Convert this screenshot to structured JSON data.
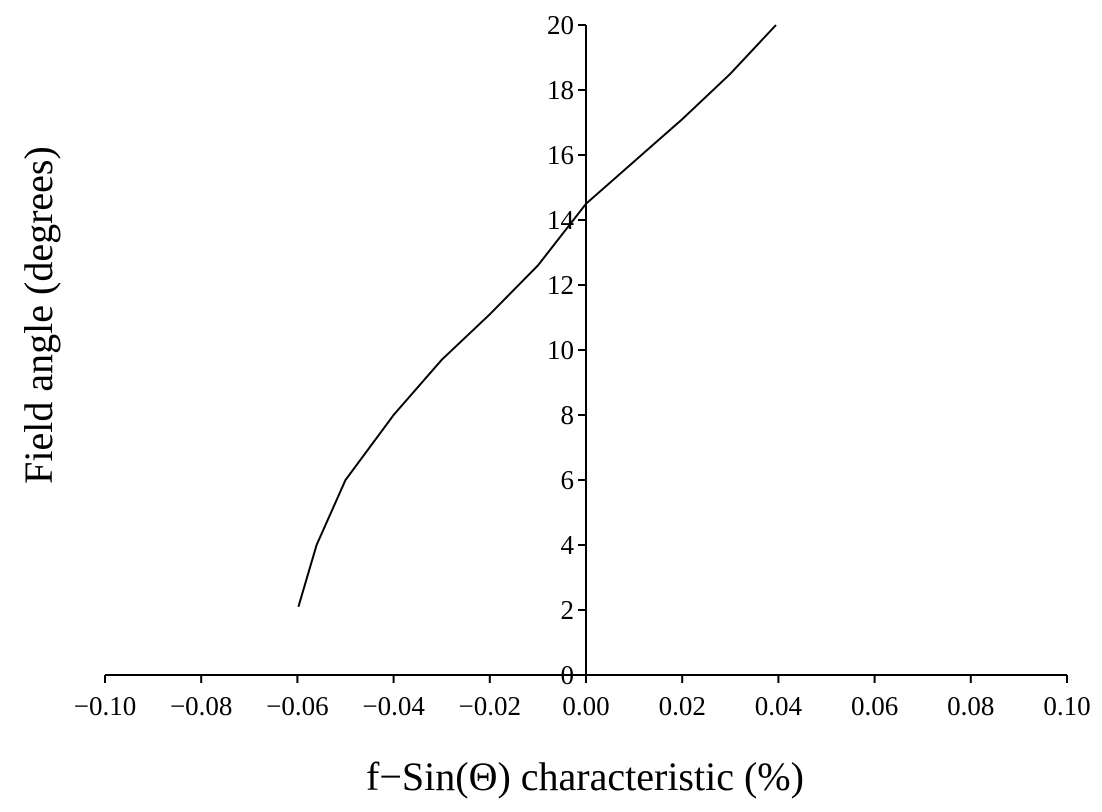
{
  "chart_data": {
    "type": "line",
    "title": "",
    "xlabel": "f−Sin(Θ) characteristic (%)",
    "ylabel": "Field angle (degrees)",
    "xlim": [
      -0.1,
      0.1
    ],
    "ylim": [
      0,
      20
    ],
    "x_ticks": [
      -0.1,
      -0.08,
      -0.06,
      -0.04,
      -0.02,
      0.0,
      0.02,
      0.04,
      0.06,
      0.08,
      0.1
    ],
    "x_tick_labels": [
      "−0.10",
      "−0.08",
      "−0.06",
      "−0.04",
      "−0.02",
      "0.00",
      "0.02",
      "0.04",
      "0.06",
      "0.08",
      "0.10"
    ],
    "y_ticks": [
      0,
      2,
      4,
      6,
      8,
      10,
      12,
      14,
      16,
      18,
      20
    ],
    "y_tick_labels": [
      "0",
      "2",
      "4",
      "6",
      "8",
      "10",
      "12",
      "14",
      "16",
      "18",
      "20"
    ],
    "grid": false,
    "legend": "none",
    "series": [
      {
        "x": [
          -0.0598,
          -0.056,
          -0.05,
          -0.04,
          -0.03,
          -0.02,
          -0.01,
          0.0,
          0.01,
          0.02,
          0.03,
          0.0395
        ],
        "y": [
          2.1,
          4.0,
          6.0,
          8.0,
          9.7,
          11.1,
          12.6,
          14.5,
          15.8,
          17.1,
          18.5,
          20.0
        ]
      }
    ]
  }
}
